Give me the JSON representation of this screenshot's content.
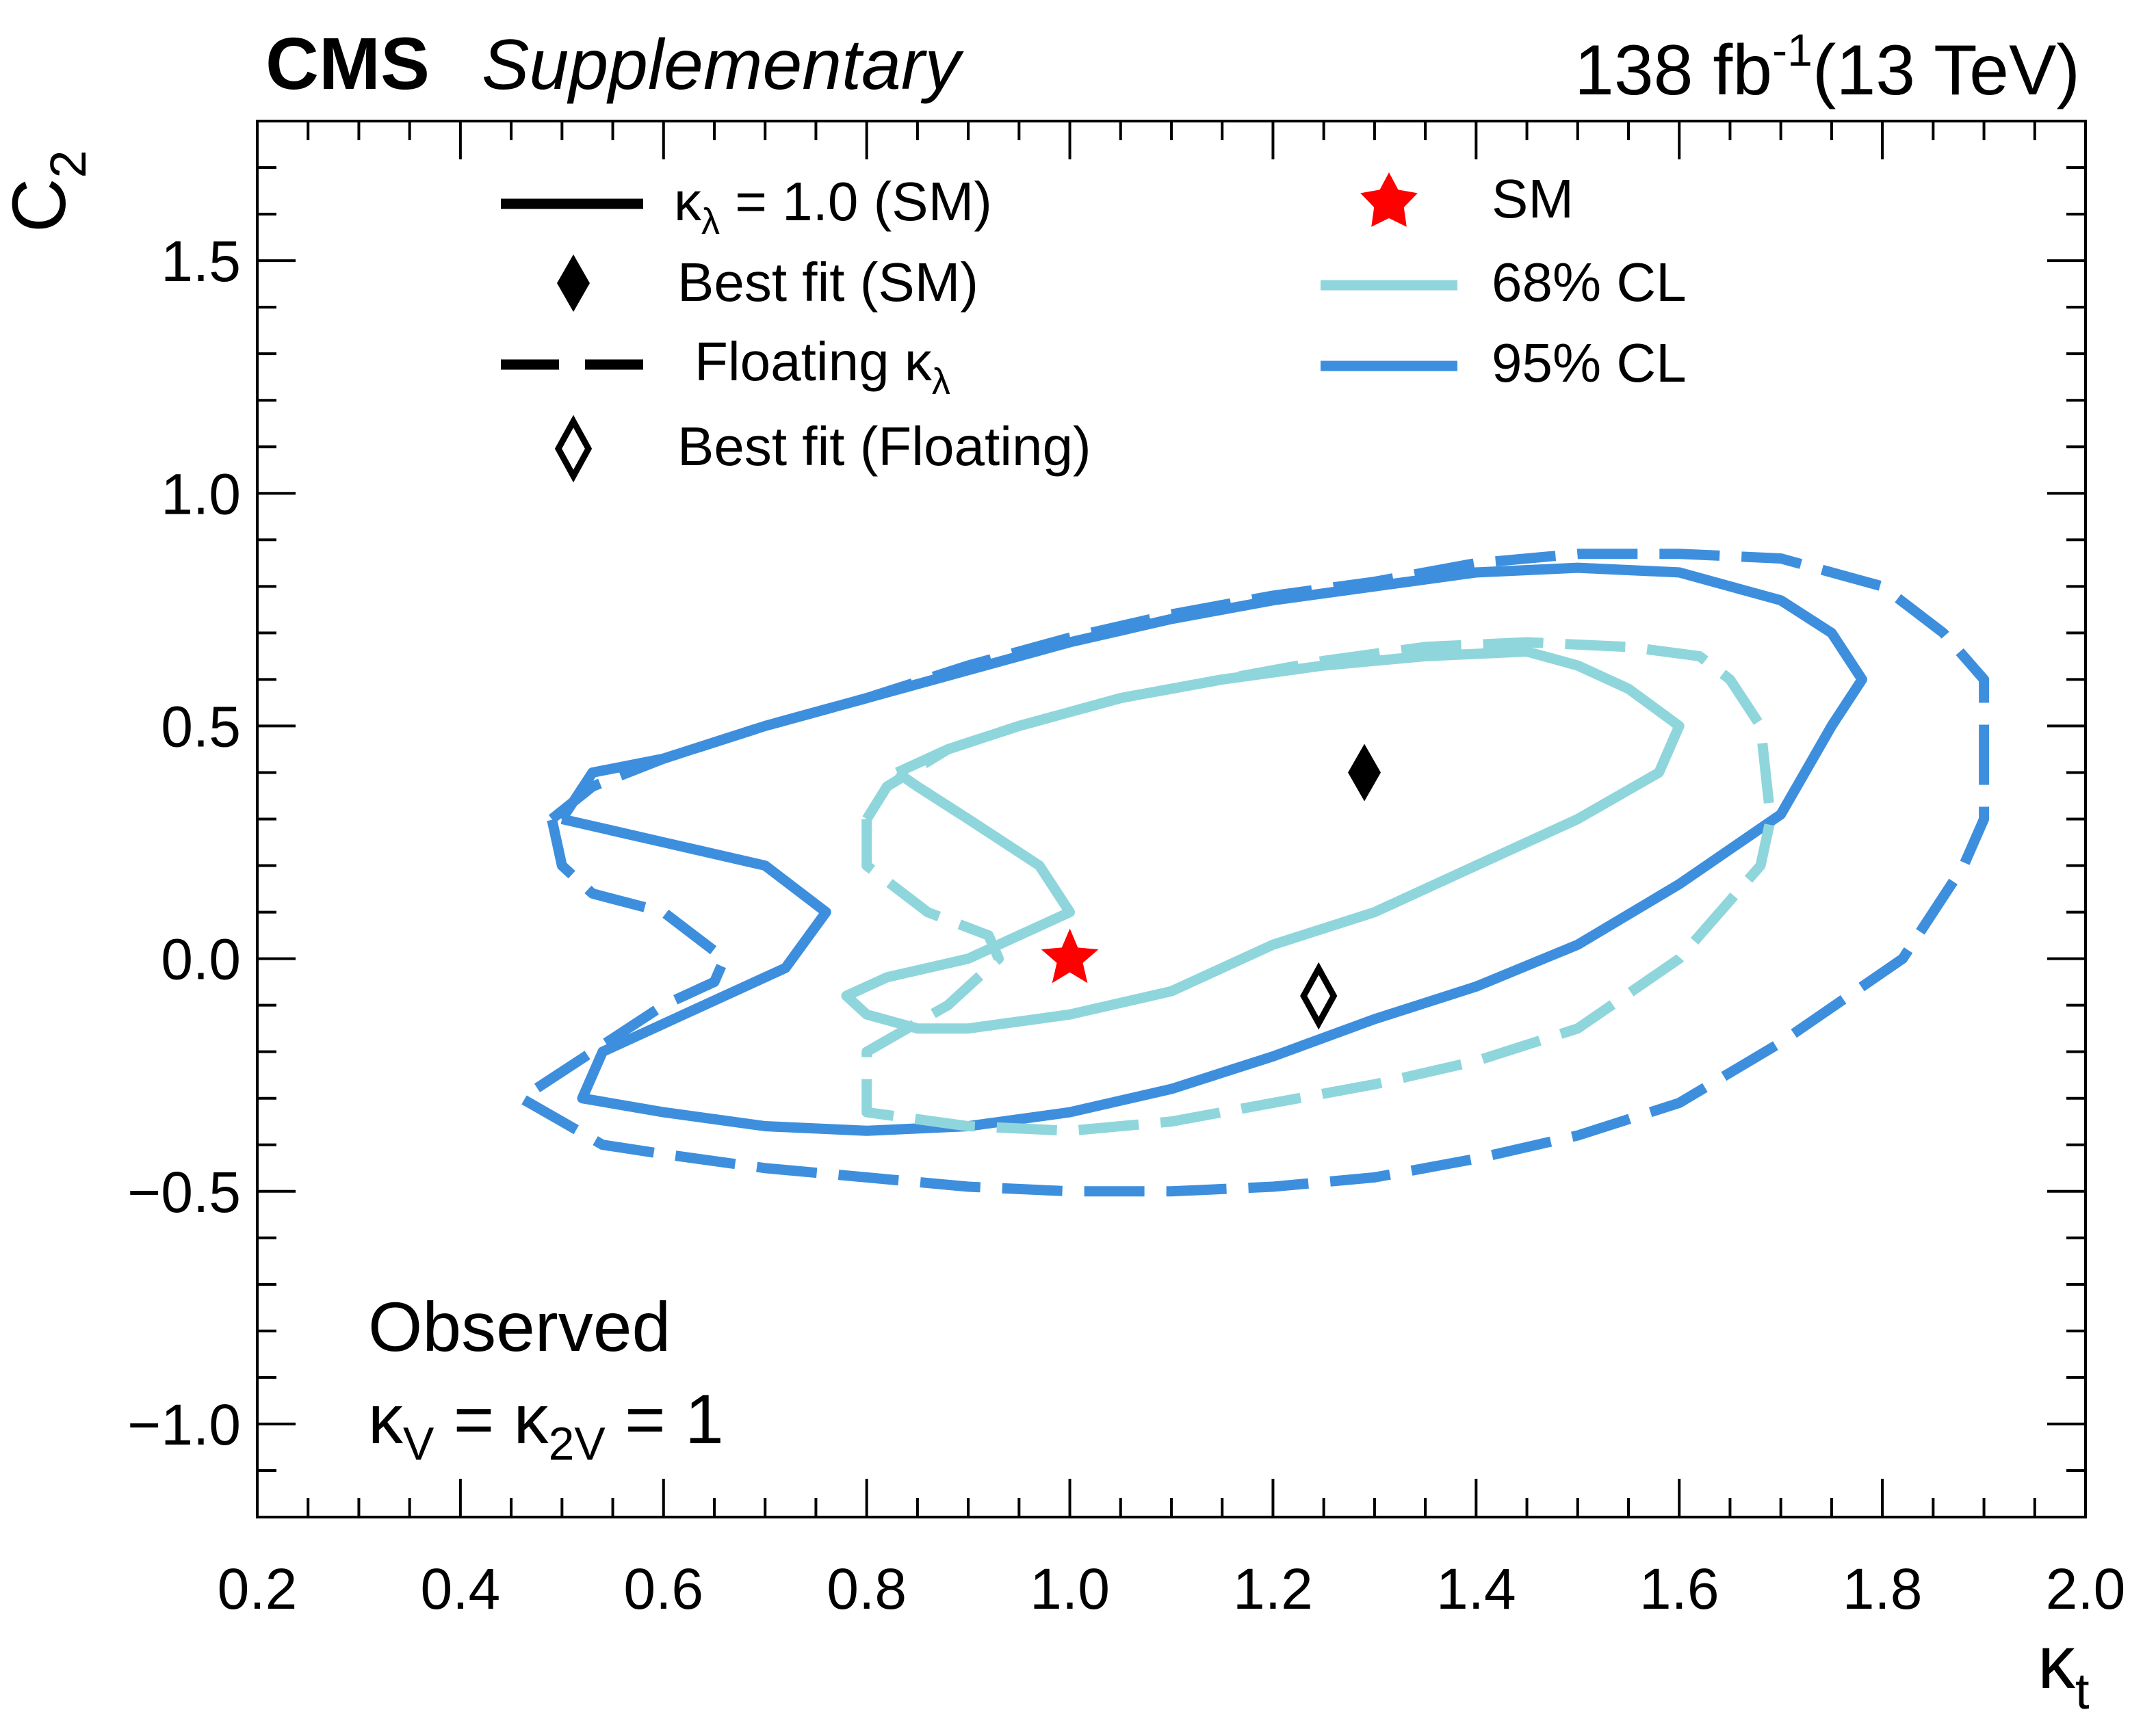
{
  "header": {
    "experiment": "CMS",
    "label": "Supplementary",
    "lumi_value": "138 fb",
    "lumi_exponent": "-1",
    "energy": "(13 TeV)"
  },
  "annotation": {
    "line1": "Observed",
    "line2_kv": "κ",
    "line2_kv_sub": "V",
    "line2_eq": " = ",
    "line2_k2v": "κ",
    "line2_k2v_sub": "2V",
    "line2_val": " = 1"
  },
  "legend": {
    "solid_label": "κ",
    "solid_label_sub": "λ",
    "solid_label_rest": " = 1.0 (SM)",
    "best_fit_sm": "Best fit (SM)",
    "dashed_label": "Floating κ",
    "dashed_label_sub": "λ",
    "best_fit_floating": "Best fit (Floating)",
    "sm_label": "SM",
    "cl68_label": "68% CL",
    "cl95_label": "95% CL"
  },
  "colors": {
    "cl68": "#8fd6dc",
    "cl95": "#3d8fde",
    "sm_star": "#ff0000",
    "marker": "#000000"
  },
  "chart_data": {
    "type": "contour",
    "xlabel": "κt",
    "ylabel": "C2",
    "xlim": [
      0.2,
      2.0
    ],
    "ylim": [
      -1.2,
      1.8
    ],
    "x_ticks": [
      0.2,
      0.4,
      0.6,
      0.8,
      1.0,
      1.2,
      1.4,
      1.6,
      1.8,
      2.0
    ],
    "x_tick_labels": [
      "0.2",
      "0.4",
      "0.6",
      "0.8",
      "1.0",
      "1.2",
      "1.4",
      "1.6",
      "1.8",
      "2.0"
    ],
    "y_ticks": [
      1.5,
      1.0,
      0.5,
      0.0,
      -0.5,
      -1.0
    ],
    "y_tick_labels": [
      "1.5",
      "1.0",
      "0.5",
      "0.0",
      "−0.5",
      "−1.0"
    ],
    "x_minor_step": 0.05,
    "y_minor_step": 0.1,
    "sm_point": {
      "x": 1.0,
      "y": 0.0
    },
    "best_fit_sm": {
      "x": 1.29,
      "y": 0.4
    },
    "best_fit_floating": {
      "x": 1.245,
      "y": -0.08
    },
    "series": [
      {
        "name": "95% CL, κλ = 1.0 (SM)",
        "cl": "95",
        "style": "solid",
        "points": [
          [
            0.5,
            0.3
          ],
          [
            0.53,
            0.4
          ],
          [
            0.6,
            0.43
          ],
          [
            0.7,
            0.5
          ],
          [
            0.8,
            0.56
          ],
          [
            0.9,
            0.62
          ],
          [
            1.0,
            0.68
          ],
          [
            1.1,
            0.73
          ],
          [
            1.2,
            0.77
          ],
          [
            1.3,
            0.8
          ],
          [
            1.4,
            0.83
          ],
          [
            1.5,
            0.84
          ],
          [
            1.6,
            0.83
          ],
          [
            1.7,
            0.77
          ],
          [
            1.75,
            0.7
          ],
          [
            1.78,
            0.6
          ],
          [
            1.75,
            0.5
          ],
          [
            1.7,
            0.31
          ],
          [
            1.6,
            0.16
          ],
          [
            1.5,
            0.03
          ],
          [
            1.4,
            -0.06
          ],
          [
            1.3,
            -0.13
          ],
          [
            1.2,
            -0.21
          ],
          [
            1.1,
            -0.28
          ],
          [
            1.0,
            -0.33
          ],
          [
            0.9,
            -0.36
          ],
          [
            0.8,
            -0.37
          ],
          [
            0.7,
            -0.36
          ],
          [
            0.6,
            -0.33
          ],
          [
            0.52,
            -0.3
          ],
          [
            0.54,
            -0.2
          ],
          [
            0.6,
            -0.14
          ],
          [
            0.66,
            -0.08
          ],
          [
            0.72,
            -0.02
          ],
          [
            0.76,
            0.1
          ],
          [
            0.7,
            0.2
          ],
          [
            0.6,
            0.25
          ],
          [
            0.5,
            0.3
          ]
        ]
      },
      {
        "name": "95% CL, Floating κλ",
        "cl": "95",
        "style": "dashed",
        "points": [
          [
            0.49,
            0.3
          ],
          [
            0.53,
            0.37
          ],
          [
            0.6,
            0.43
          ],
          [
            0.7,
            0.5
          ],
          [
            0.8,
            0.56
          ],
          [
            0.9,
            0.63
          ],
          [
            1.0,
            0.69
          ],
          [
            1.1,
            0.74
          ],
          [
            1.2,
            0.78
          ],
          [
            1.3,
            0.81
          ],
          [
            1.4,
            0.85
          ],
          [
            1.5,
            0.87
          ],
          [
            1.6,
            0.87
          ],
          [
            1.7,
            0.86
          ],
          [
            1.8,
            0.8
          ],
          [
            1.86,
            0.7
          ],
          [
            1.9,
            0.6
          ],
          [
            1.9,
            0.3
          ],
          [
            1.88,
            0.2
          ],
          [
            1.82,
            0.0
          ],
          [
            1.7,
            -0.18
          ],
          [
            1.6,
            -0.31
          ],
          [
            1.5,
            -0.38
          ],
          [
            1.4,
            -0.43
          ],
          [
            1.3,
            -0.47
          ],
          [
            1.2,
            -0.49
          ],
          [
            1.1,
            -0.5
          ],
          [
            1.0,
            -0.5
          ],
          [
            0.9,
            -0.49
          ],
          [
            0.8,
            -0.47
          ],
          [
            0.7,
            -0.45
          ],
          [
            0.6,
            -0.42
          ],
          [
            0.54,
            -0.4
          ],
          [
            0.46,
            -0.3
          ],
          [
            0.53,
            -0.2
          ],
          [
            0.6,
            -0.1
          ],
          [
            0.65,
            -0.05
          ],
          [
            0.66,
            0.0
          ],
          [
            0.6,
            0.1
          ],
          [
            0.53,
            0.14
          ],
          [
            0.5,
            0.2
          ],
          [
            0.49,
            0.3
          ]
        ]
      },
      {
        "name": "68% CL, κλ = 1.0 (SM)",
        "cl": "68",
        "style": "solid",
        "points": [
          [
            0.83,
            0.4
          ],
          [
            0.88,
            0.45
          ],
          [
            0.95,
            0.5
          ],
          [
            1.05,
            0.56
          ],
          [
            1.15,
            0.6
          ],
          [
            1.25,
            0.63
          ],
          [
            1.35,
            0.65
          ],
          [
            1.45,
            0.66
          ],
          [
            1.5,
            0.63
          ],
          [
            1.55,
            0.58
          ],
          [
            1.6,
            0.5
          ],
          [
            1.58,
            0.4
          ],
          [
            1.5,
            0.3
          ],
          [
            1.4,
            0.2
          ],
          [
            1.3,
            0.1
          ],
          [
            1.2,
            0.03
          ],
          [
            1.1,
            -0.07
          ],
          [
            1.0,
            -0.12
          ],
          [
            0.9,
            -0.15
          ],
          [
            0.85,
            -0.15
          ],
          [
            0.8,
            -0.12
          ],
          [
            0.78,
            -0.08
          ],
          [
            0.82,
            -0.04
          ],
          [
            0.9,
            0.0
          ],
          [
            0.95,
            0.05
          ],
          [
            1.0,
            0.1
          ],
          [
            0.97,
            0.2
          ],
          [
            0.9,
            0.3
          ],
          [
            0.85,
            0.37
          ],
          [
            0.83,
            0.4
          ]
        ]
      },
      {
        "name": "68% CL, Floating κλ",
        "cl": "68",
        "style": "dashed",
        "points": [
          [
            0.8,
            0.3
          ],
          [
            0.82,
            0.37
          ],
          [
            0.88,
            0.45
          ],
          [
            0.95,
            0.5
          ],
          [
            1.05,
            0.56
          ],
          [
            1.15,
            0.6
          ],
          [
            1.25,
            0.64
          ],
          [
            1.35,
            0.67
          ],
          [
            1.45,
            0.68
          ],
          [
            1.55,
            0.67
          ],
          [
            1.62,
            0.65
          ],
          [
            1.65,
            0.6
          ],
          [
            1.68,
            0.5
          ],
          [
            1.69,
            0.3
          ],
          [
            1.68,
            0.2
          ],
          [
            1.6,
            0.0
          ],
          [
            1.5,
            -0.15
          ],
          [
            1.4,
            -0.22
          ],
          [
            1.3,
            -0.27
          ],
          [
            1.2,
            -0.31
          ],
          [
            1.1,
            -0.35
          ],
          [
            1.0,
            -0.37
          ],
          [
            0.9,
            -0.36
          ],
          [
            0.8,
            -0.33
          ],
          [
            0.8,
            -0.2
          ],
          [
            0.88,
            -0.1
          ],
          [
            0.93,
            0.0
          ],
          [
            0.92,
            0.05
          ],
          [
            0.86,
            0.1
          ],
          [
            0.8,
            0.2
          ],
          [
            0.8,
            0.3
          ]
        ]
      }
    ]
  }
}
